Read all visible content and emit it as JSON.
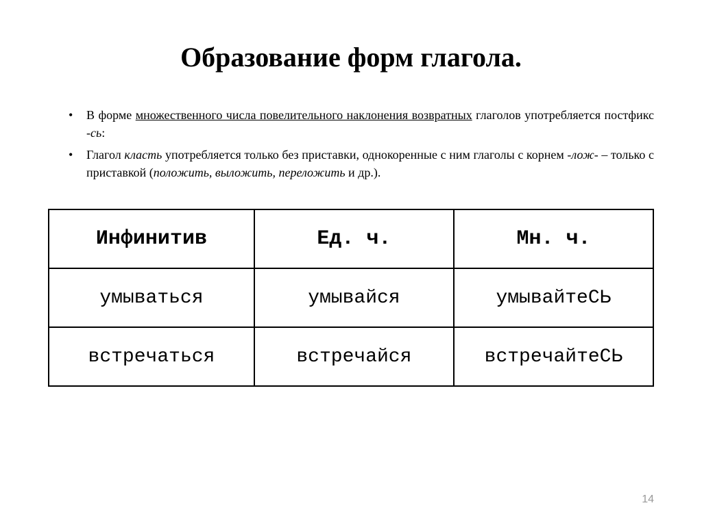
{
  "title": "Образование форм глагола.",
  "bullets": [
    {
      "pre": "В форме ",
      "underlined": "множественного числа повелительного наклонения возвратных",
      "post": " глаголов употребляется постфикс ",
      "italic_tail": "-сь",
      "tail": ":"
    },
    {
      "pre": "Глагол ",
      "italic1": "класть",
      "mid1": " употребляется только без приставки, однокоренные с ним глаголы с корнем ",
      "italic2": "-лож-",
      "mid2": " – только с приставкой (",
      "italic3": "положить, выложить, переложить",
      "tail": " и др.)."
    }
  ],
  "table": {
    "columns": [
      "Инфинитив",
      "Ед. ч.",
      "Мн. ч."
    ],
    "rows": [
      [
        "умываться",
        "умывайся",
        "умывайтеСЬ"
      ],
      [
        "встречаться",
        "встречайся",
        "встречайтеСЬ"
      ]
    ],
    "border_color": "#000000",
    "header_font_weight": "bold",
    "font_family": "Courier New"
  },
  "page_number": "14",
  "colors": {
    "background": "#ffffff",
    "text": "#000000",
    "page_number": "#999999"
  }
}
